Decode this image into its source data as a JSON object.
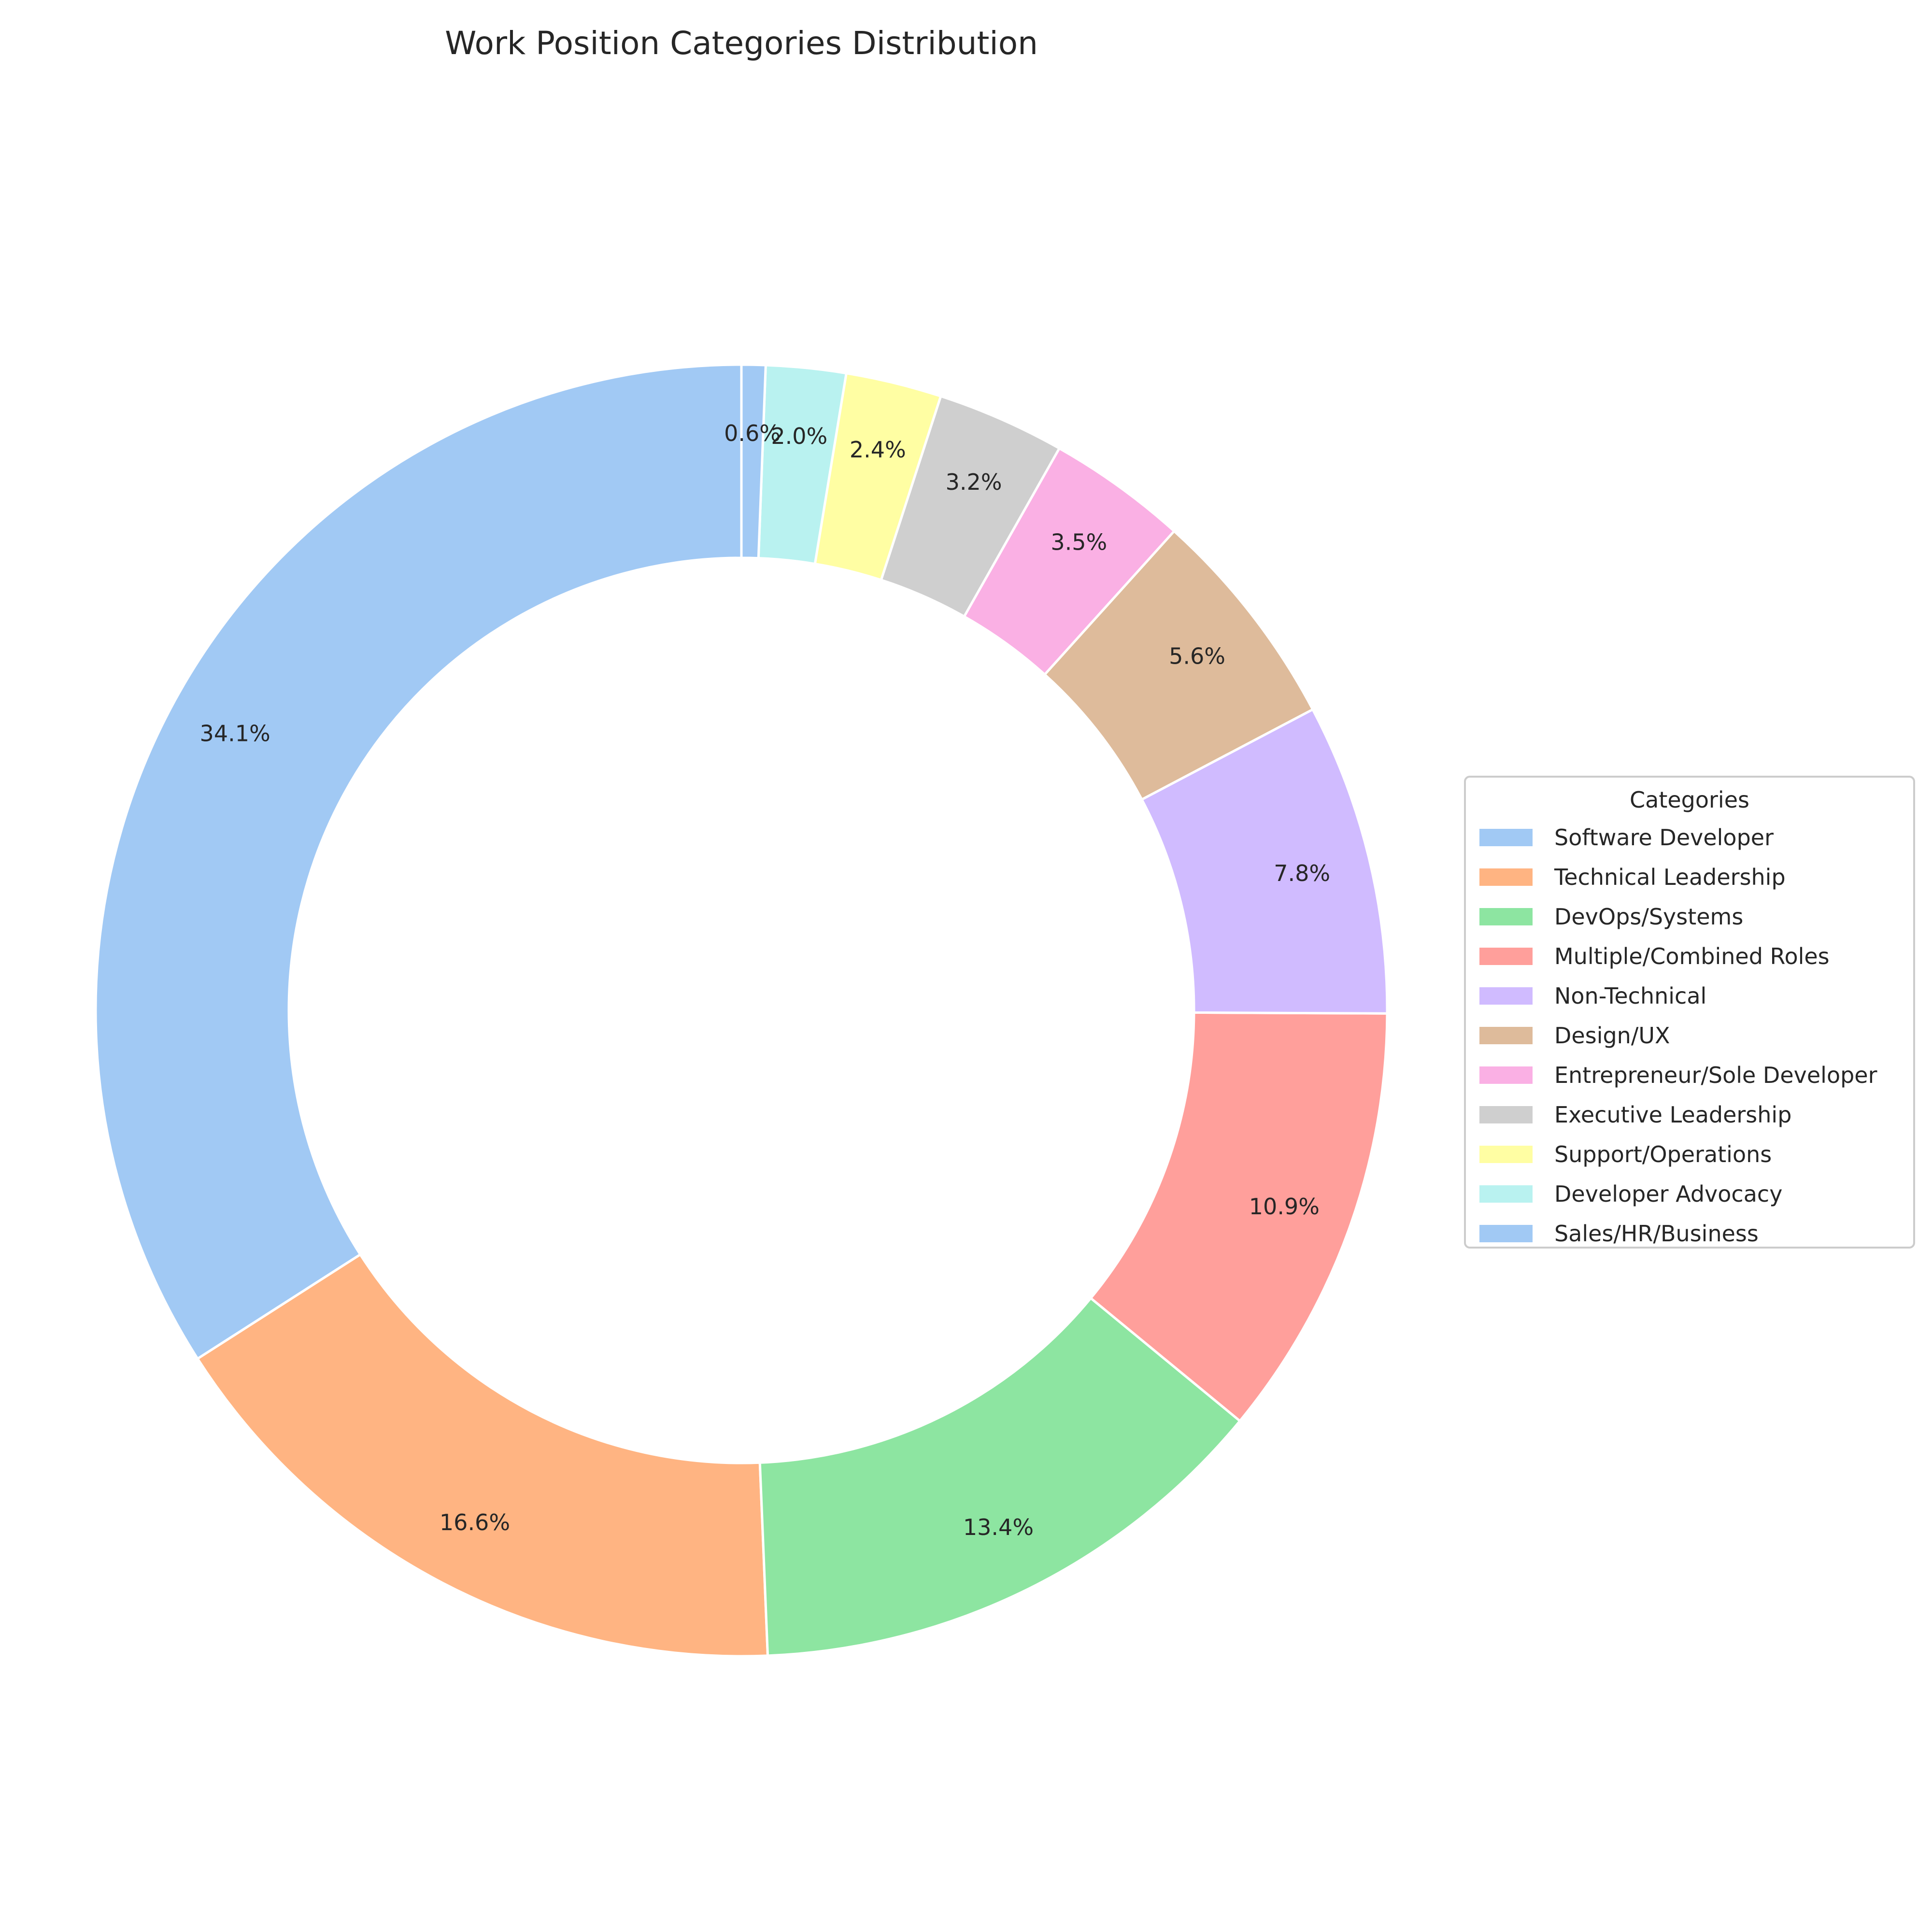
{
  "chart_data": {
    "type": "pie",
    "donut": true,
    "title": "Work Position Categories Distribution",
    "legend_title": "Categories",
    "legend_position": "right",
    "start_angle_deg": 90,
    "direction": "counterclockwise",
    "slices": [
      {
        "label": "Software Developer",
        "pct_label": "34.1%",
        "value": 34.1,
        "color": "#a1c9f4"
      },
      {
        "label": "Technical Leadership",
        "pct_label": "16.6%",
        "value": 16.6,
        "color": "#ffb482"
      },
      {
        "label": "DevOps/Systems",
        "pct_label": "13.4%",
        "value": 13.4,
        "color": "#8de5a1"
      },
      {
        "label": "Multiple/Combined Roles",
        "pct_label": "10.9%",
        "value": 10.9,
        "color": "#ff9f9b"
      },
      {
        "label": "Non-Technical",
        "pct_label": "7.8%",
        "value": 7.8,
        "color": "#d0bbff"
      },
      {
        "label": "Design/UX",
        "pct_label": "5.6%",
        "value": 5.6,
        "color": "#debb9b"
      },
      {
        "label": "Entrepreneur/Sole Developer",
        "pct_label": "3.5%",
        "value": 3.5,
        "color": "#fab0e4"
      },
      {
        "label": "Executive Leadership",
        "pct_label": "3.2%",
        "value": 3.2,
        "color": "#cfcfcf"
      },
      {
        "label": "Support/Operations",
        "pct_label": "2.4%",
        "value": 2.4,
        "color": "#fffea3"
      },
      {
        "label": "Developer Advocacy",
        "pct_label": "2.0%",
        "value": 2.0,
        "color": "#b9f2f0"
      },
      {
        "label": "Sales/HR/Business",
        "pct_label": "0.6%",
        "value": 0.6,
        "color": "#a1c9f4"
      }
    ]
  }
}
